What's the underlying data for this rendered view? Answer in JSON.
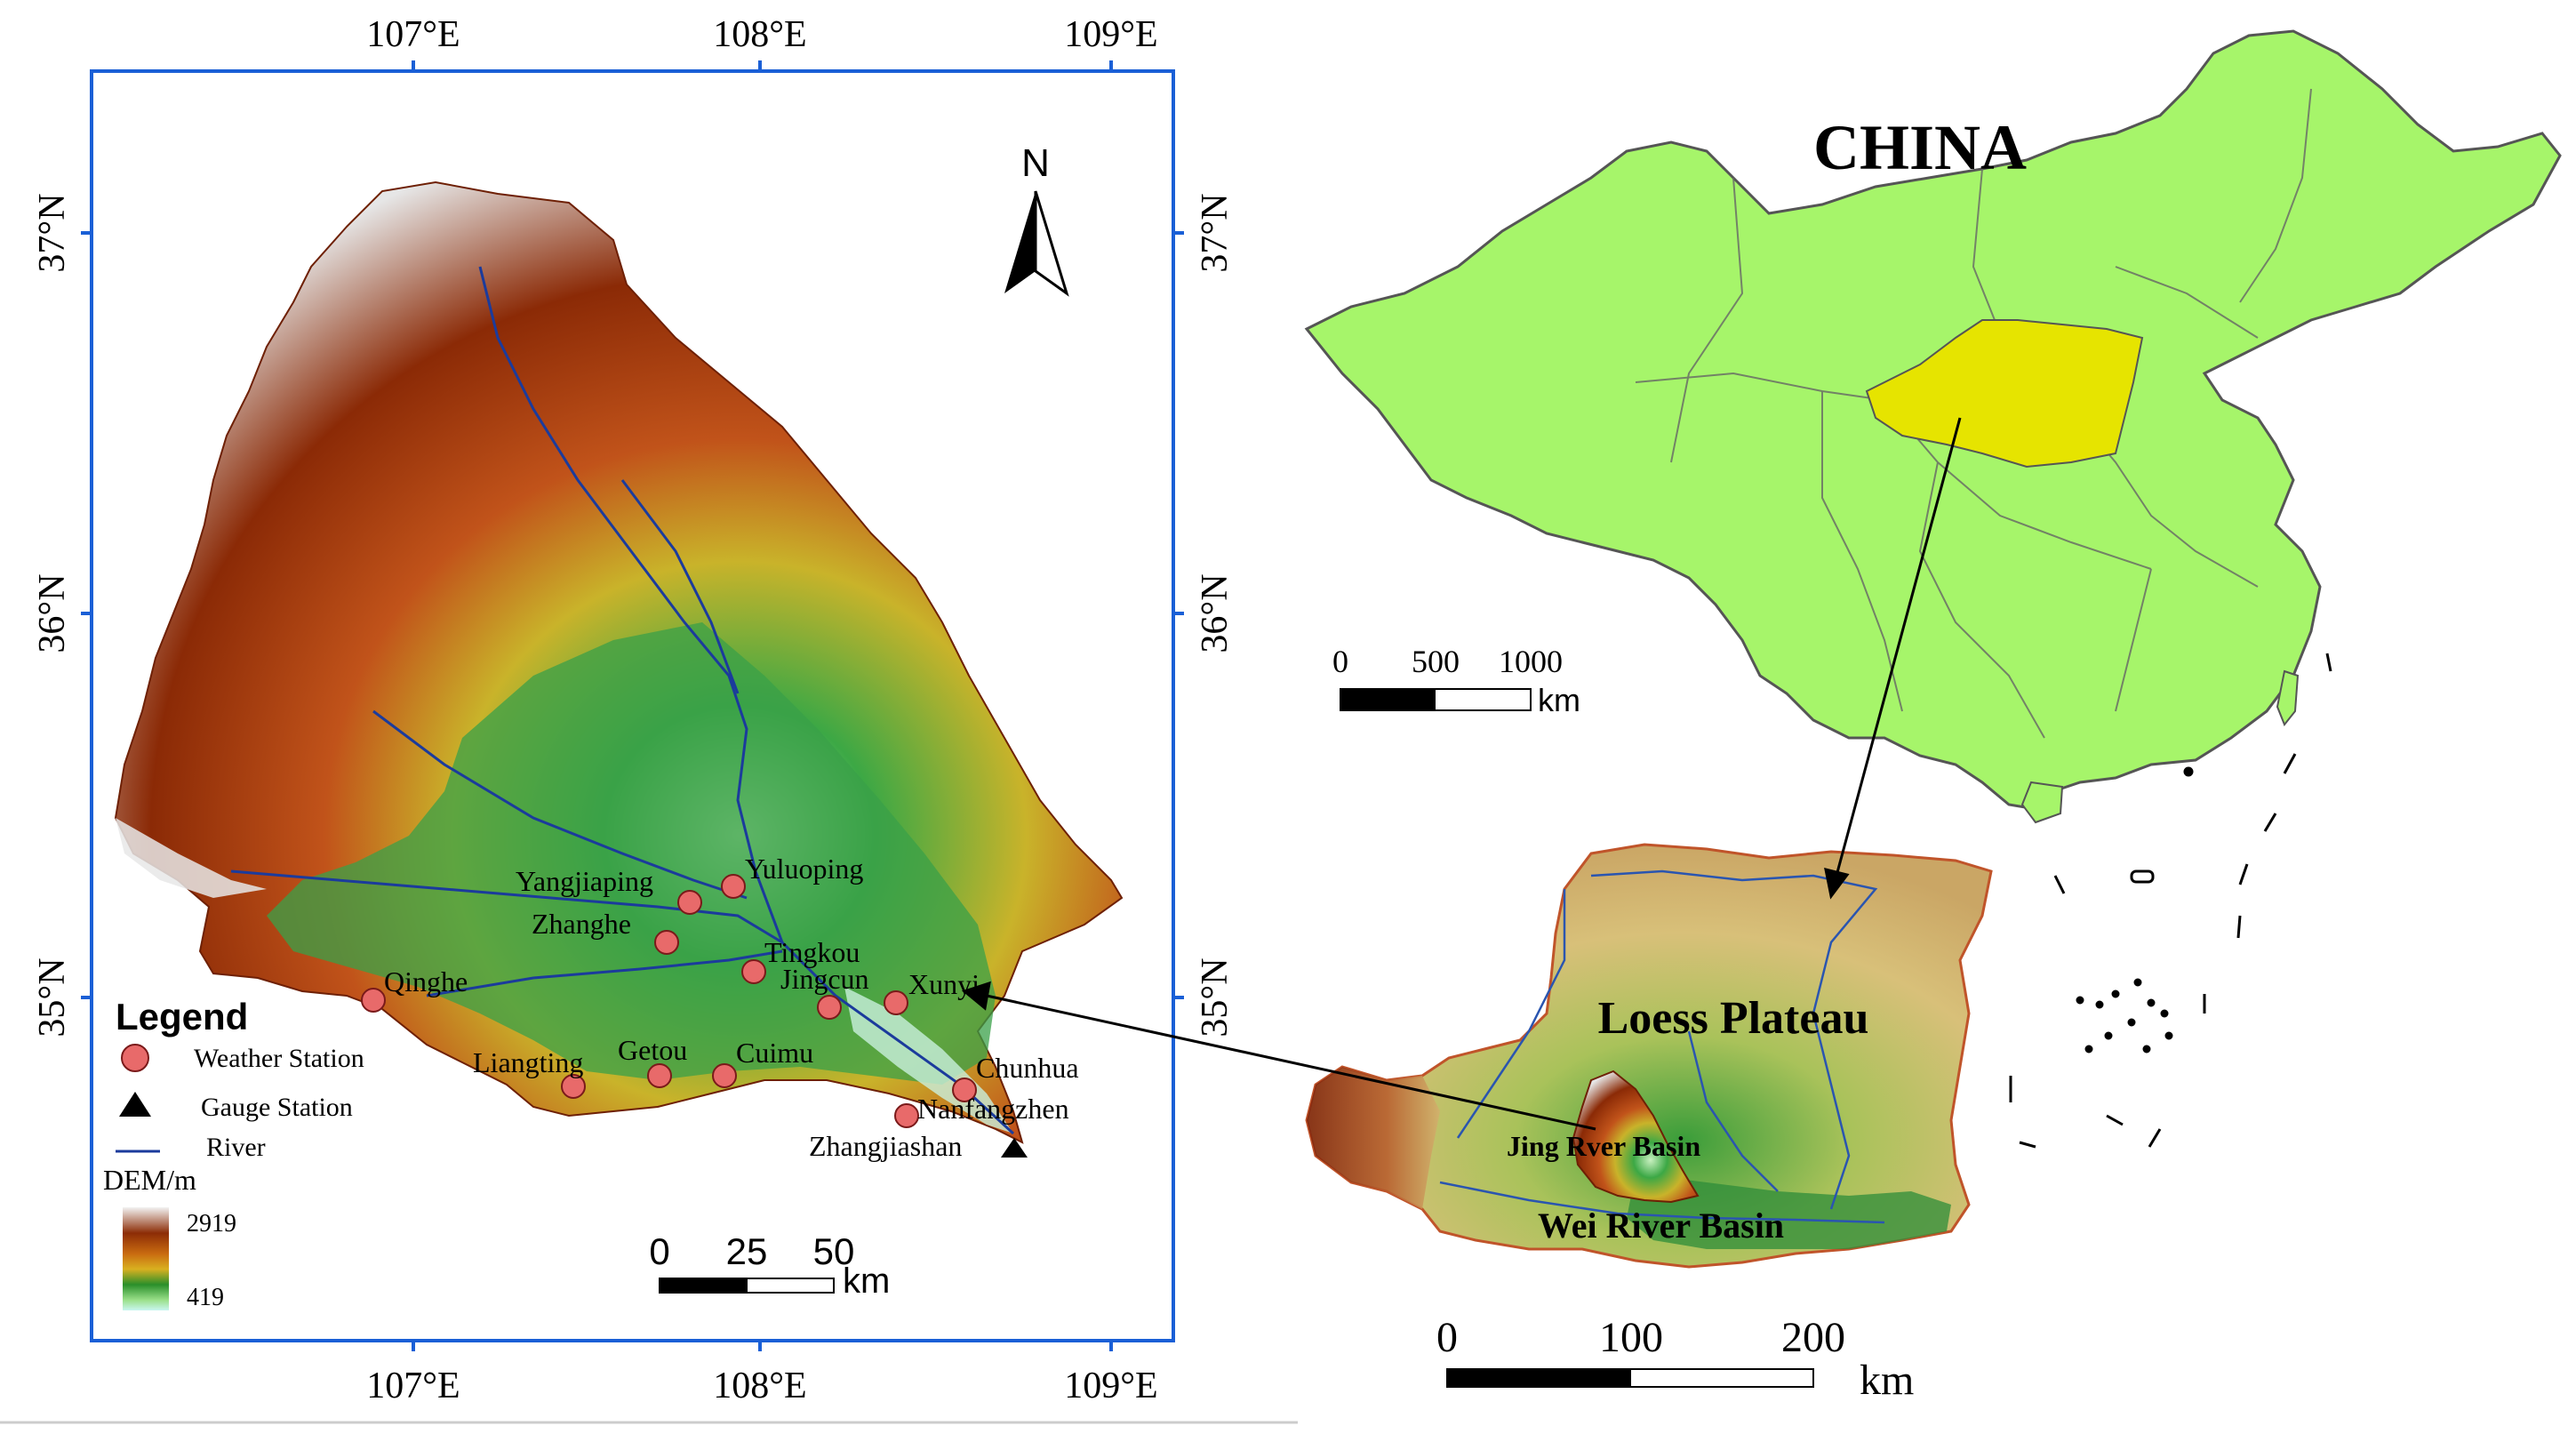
{
  "left_map": {
    "lon_ticks": [
      "107°E",
      "108°E",
      "109°E"
    ],
    "lat_ticks": [
      "37°N",
      "36°N",
      "35°N"
    ],
    "north_label": "N",
    "stations": [
      {
        "name": "Yangjiaping",
        "type": "weather"
      },
      {
        "name": "Yuluoping",
        "type": "weather"
      },
      {
        "name": "Zhanghe",
        "type": "weather"
      },
      {
        "name": "Tingkou",
        "type": "weather"
      },
      {
        "name": "Jingcun",
        "type": "weather"
      },
      {
        "name": "Xunyi",
        "type": "weather"
      },
      {
        "name": "Qinghe",
        "type": "weather"
      },
      {
        "name": "Liangting",
        "type": "weather"
      },
      {
        "name": "Getou",
        "type": "weather"
      },
      {
        "name": "Cuimu",
        "type": "weather"
      },
      {
        "name": "Chunhua",
        "type": "weather"
      },
      {
        "name": "Nanfangzhen",
        "type": "weather"
      },
      {
        "name": "Zhangjiashan",
        "type": "gauge"
      }
    ],
    "legend": {
      "title": "Legend",
      "weather_station": "Weather Station",
      "gauge_station": "Gauge Station",
      "river": "River",
      "dem_title": "DEM/m",
      "dem_max": "2919",
      "dem_min": "419"
    },
    "scale_bar": {
      "ticks": [
        "0",
        "25",
        "50"
      ],
      "unit": "km"
    }
  },
  "china_map": {
    "title": "CHINA",
    "scale_bar": {
      "ticks": [
        "0",
        "500",
        "1000"
      ],
      "unit": "km"
    }
  },
  "plateau_map": {
    "title": "Loess Plateau",
    "jing_label": "Jing Rver Basin",
    "wei_label": "Wei River Basin",
    "scale_bar": {
      "ticks": [
        "0",
        "100",
        "200"
      ],
      "unit": "km"
    }
  },
  "colors": {
    "frame": "#1a5fd6",
    "china_fill": "#a6f56a",
    "plateau_highlight": "#e6e400",
    "station_fill": "#e86a6a",
    "river": "#1b3b9c",
    "dem_high": "#f0f0f0",
    "dem_mid": "#8a2a05",
    "dem_green": "#238b2a",
    "dem_low": "#c8f5ef"
  }
}
